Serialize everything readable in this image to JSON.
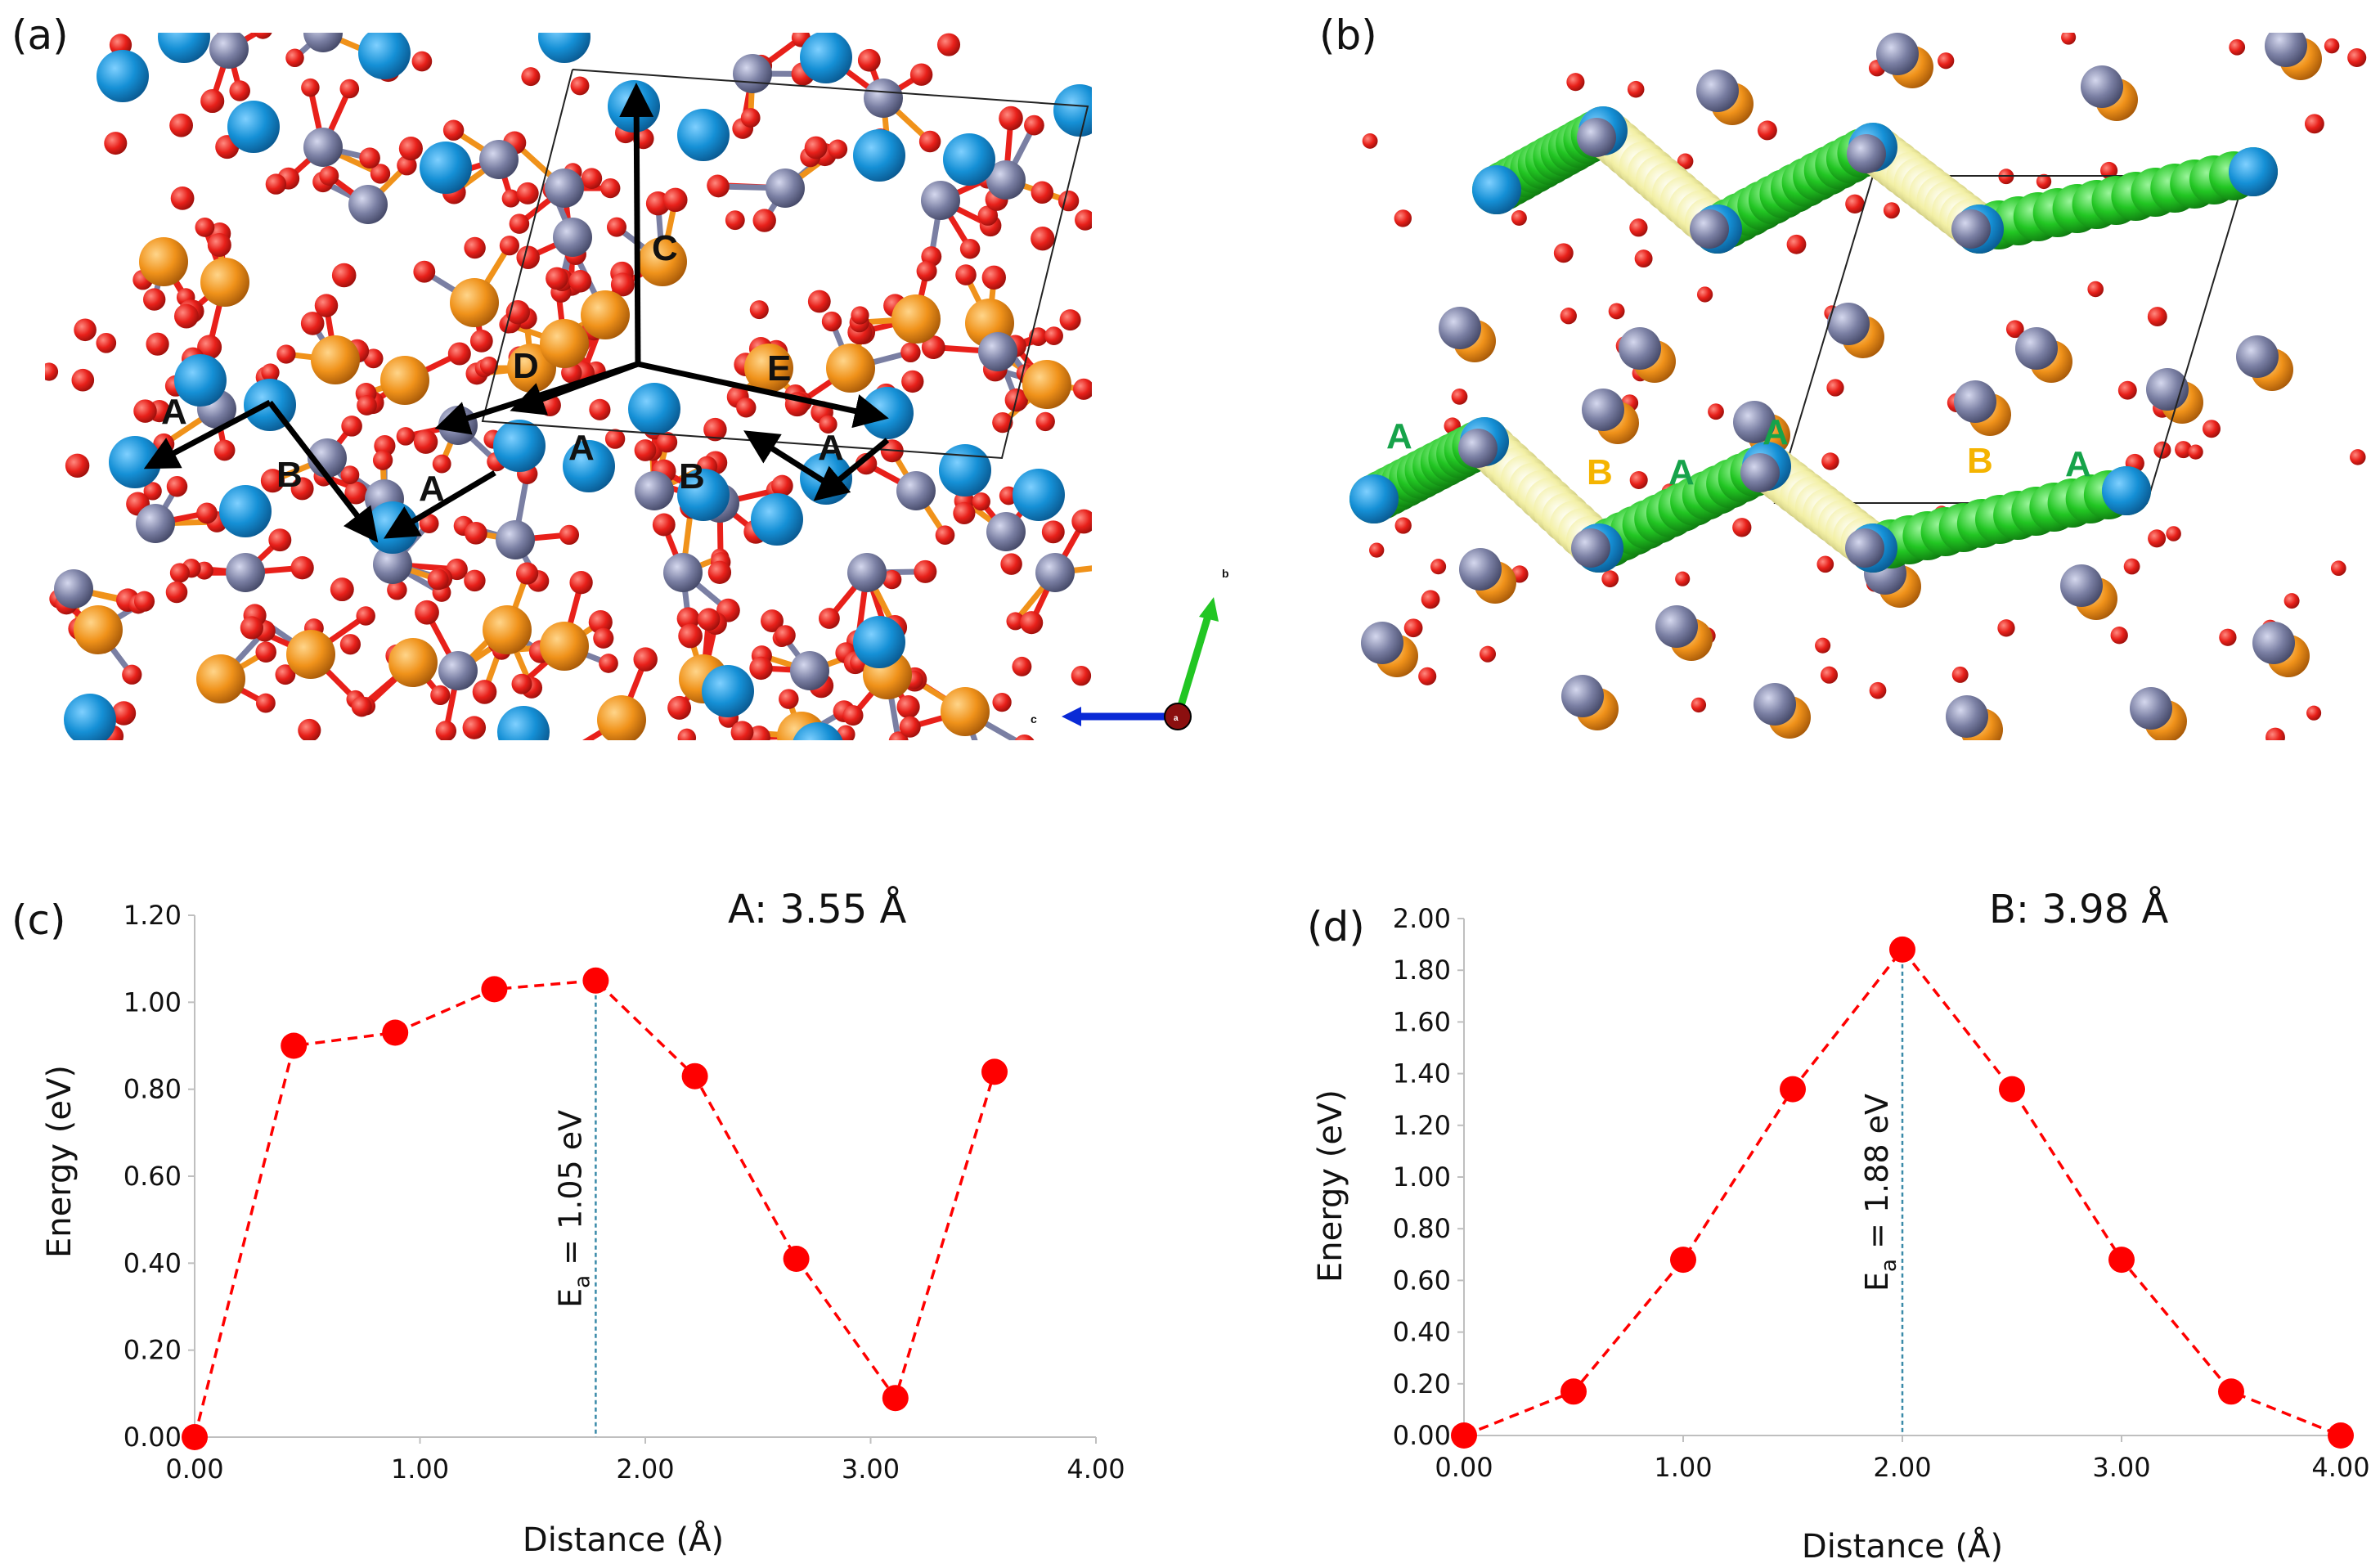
{
  "panels": {
    "a": {
      "label": "(a)",
      "path_labels": [
        "A",
        "B",
        "A",
        "A",
        "B",
        "A",
        "C",
        "D",
        "E"
      ],
      "axis_labels": [
        "b",
        "c",
        "a"
      ]
    },
    "b": {
      "label": "(b)",
      "chain_labels": [
        "A",
        "B",
        "A",
        "A",
        "B",
        "A"
      ]
    }
  },
  "colors": {
    "oxygen": "#e8201a",
    "li_blue": "#1590d6",
    "metal_gray": "#7a7fa3",
    "metal_orange": "#f0921a",
    "chain_green": "#22c623",
    "chain_yellow": "#f3f0a6",
    "series_red": "#ff0000",
    "label_green": "#16a34a",
    "label_orange": "#f5b400",
    "ea_line": "#3a8aa8"
  },
  "chart_data": [
    {
      "panel_label": "(c)",
      "type": "line",
      "title": "A: 3.55 Å",
      "xlabel": "Distance (Å)",
      "ylabel": "Energy (eV)",
      "xlim": [
        0,
        4
      ],
      "ylim": [
        0,
        1.2
      ],
      "x_ticks": [
        "0.00",
        "1.00",
        "2.00",
        "3.00",
        "4.00"
      ],
      "y_ticks": [
        "0.00",
        "0.20",
        "0.40",
        "0.60",
        "0.80",
        "1.00",
        "1.20"
      ],
      "x": [
        0.0,
        0.44,
        0.89,
        1.33,
        1.78,
        2.22,
        2.67,
        3.11,
        3.55
      ],
      "y": [
        0.0,
        0.9,
        0.93,
        1.03,
        1.05,
        0.83,
        0.41,
        0.09,
        0.84
      ],
      "annotation": {
        "text": "E",
        "subscript": "a",
        "value_text": " = 1.05 eV",
        "x": 1.78,
        "y": 1.05
      }
    },
    {
      "panel_label": "(d)",
      "type": "line",
      "title": "B: 3.98 Å",
      "xlabel": "Distance (Å)",
      "ylabel": "Energy (eV)",
      "xlim": [
        0,
        4
      ],
      "ylim": [
        0,
        2
      ],
      "x_ticks": [
        "0.00",
        "1.00",
        "2.00",
        "3.00",
        "4.00"
      ],
      "y_ticks": [
        "0.00",
        "0.20",
        "0.40",
        "0.60",
        "0.80",
        "1.00",
        "1.20",
        "1.40",
        "1.60",
        "1.80",
        "2.00"
      ],
      "x": [
        0.0,
        0.5,
        1.0,
        1.5,
        2.0,
        2.5,
        3.0,
        3.5,
        4.0
      ],
      "y": [
        0.0,
        0.17,
        0.68,
        1.34,
        1.88,
        1.34,
        0.68,
        0.17,
        0.0
      ],
      "annotation": {
        "text": "E",
        "subscript": "a",
        "value_text": " = 1.88 eV",
        "x": 2.0,
        "y": 1.88
      }
    }
  ]
}
